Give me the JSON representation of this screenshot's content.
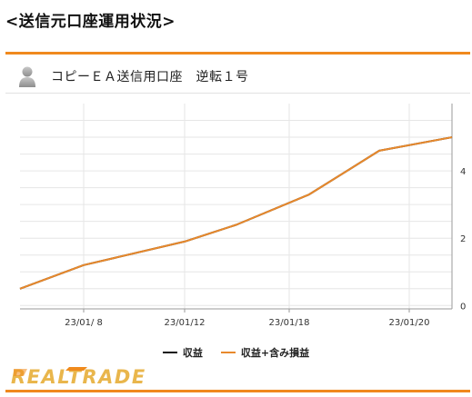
{
  "page": {
    "title": "<送信元口座運用状況>"
  },
  "account": {
    "avatar_icon": "user-silhouette-icon",
    "name": "コピーＥＡ送信用口座　逆転１号"
  },
  "chart_data": {
    "type": "line",
    "title": "",
    "xlabel": "",
    "ylabel": "",
    "x_tick_labels": [
      "23/01/ 8",
      "23/01/12",
      "23/01/18",
      "23/01/20"
    ],
    "y_ticks": [
      0,
      2,
      4
    ],
    "ylim": [
      -0.1,
      6.0
    ],
    "grid": true,
    "legend_position": "bottom",
    "series": [
      {
        "name": "収益",
        "color": "#111111",
        "values": [
          0.5,
          1.2,
          1.9,
          2.4,
          3.3,
          4.6,
          5.0
        ]
      },
      {
        "name": "収益+含み損益",
        "color": "#e8892c",
        "values": [
          0.5,
          1.2,
          1.9,
          2.4,
          3.3,
          4.6,
          5.0
        ]
      }
    ]
  },
  "branding": {
    "logo_text": "REALTRADE",
    "logo_colors": {
      "accent": "#f08a1c",
      "text": "#e9b64c"
    }
  },
  "colors": {
    "accent_rule": "#f0891e",
    "grid": "#e6e6e6",
    "axis": "#9a9a9a"
  }
}
